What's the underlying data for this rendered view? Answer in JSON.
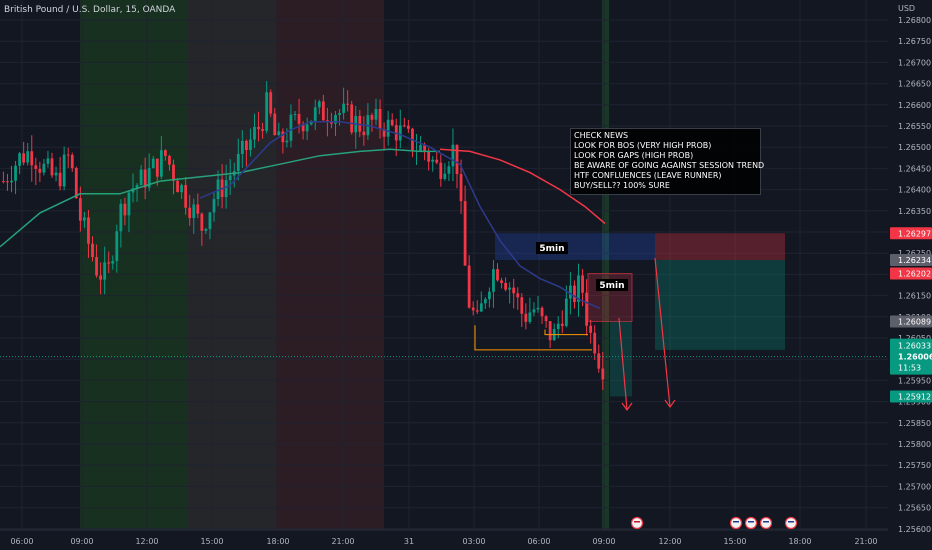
{
  "header": {
    "symbol_title": "British Pound / U.S. Dollar, 15, OANDA"
  },
  "price_axis": {
    "currency": "USD",
    "ticks": [
      "1.26800",
      "1.26750",
      "1.26700",
      "1.26650",
      "1.26600",
      "1.26550",
      "1.26500",
      "1.26450",
      "1.26400",
      "1.26350",
      "1.26300",
      "1.26250",
      "1.26200",
      "1.26150",
      "1.26100",
      "1.26050",
      "1.26000",
      "1.25950",
      "1.25900",
      "1.25850",
      "1.25800",
      "1.25750",
      "1.25700",
      "1.25650",
      "1.25600"
    ],
    "tick_values": [
      1.268,
      1.2675,
      1.267,
      1.2665,
      1.266,
      1.2655,
      1.265,
      1.2645,
      1.264,
      1.2635,
      1.263,
      1.2625,
      1.262,
      1.2615,
      1.261,
      1.2605,
      1.26,
      1.2595,
      1.259,
      1.2585,
      1.258,
      1.2575,
      1.257,
      1.2565,
      1.256
    ],
    "labels": [
      {
        "text": "1.26297",
        "value": 1.26297,
        "color": "#f23645"
      },
      {
        "text": "1.26234",
        "value": 1.26234,
        "color": "#5d606b"
      },
      {
        "text": "1.26202",
        "value": 1.26202,
        "color": "#f23645"
      },
      {
        "text": "1.26089",
        "value": 1.26089,
        "color": "#5d606b"
      },
      {
        "text": "1.25912",
        "value": 1.25912,
        "color": "#089981"
      }
    ],
    "current": {
      "price": "1.26006",
      "value": 1.26006,
      "prev": "1.26033",
      "countdown": "11:53",
      "color": "#089981"
    }
  },
  "time_axis": {
    "labels": [
      "06:00",
      "09:00",
      "12:00",
      "15:00",
      "18:00",
      "21:00",
      "31",
      "03:00",
      "06:00",
      "09:00",
      "12:00",
      "15:00",
      "18:00",
      "21:00"
    ]
  },
  "note": {
    "lines": [
      "CHECK NEWS",
      "LOOK FOR BOS (VERY HIGH PROB)",
      "LOOK FOR GAPS (HIGH PROB)",
      "BE AWARE OF GOING AGAINST SESSION TREND",
      "HTF CONFLUENCES (LEAVE RUNNER)",
      "BUY/SELL?? 100% SURE"
    ]
  },
  "zones": {
    "zone1_label": "5min",
    "zone2_label": "5min"
  },
  "colors": {
    "up": "#089981",
    "down": "#f23645",
    "ema_fast": "#2d3a8c",
    "ema_mid": "#26a17b",
    "ema_slow": "#f23645"
  },
  "events": [
    {
      "icon": "uk-flag-icon"
    },
    {
      "icon": "us-flag-icon"
    },
    {
      "icon": "us-flag-icon"
    },
    {
      "icon": "us-flag-icon"
    },
    {
      "icon": "us-flag-icon"
    }
  ]
}
